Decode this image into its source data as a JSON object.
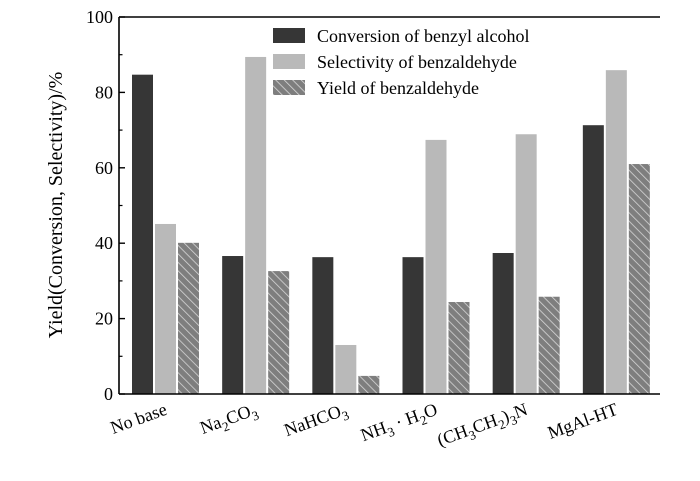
{
  "chart_data": {
    "type": "bar",
    "title": "",
    "xlabel": "",
    "ylabel": "Yield(Conversion, Selectivity)/%",
    "ylim": [
      0,
      100
    ],
    "yticks": [
      0,
      20,
      40,
      60,
      80,
      100
    ],
    "grid": false,
    "legend_position": "top-right",
    "categories": [
      {
        "base": "No base",
        "parts": [
          {
            "t": "No base"
          }
        ]
      },
      {
        "base": "Na2CO3",
        "parts": [
          {
            "t": "Na"
          },
          {
            "t": "2",
            "sub": true
          },
          {
            "t": "CO"
          },
          {
            "t": "3",
            "sub": true
          }
        ]
      },
      {
        "base": "NaHCO3",
        "parts": [
          {
            "t": "NaHCO"
          },
          {
            "t": "3",
            "sub": true
          }
        ]
      },
      {
        "base": "NH3 · H2O",
        "parts": [
          {
            "t": "NH"
          },
          {
            "t": "3",
            "sub": true
          },
          {
            "t": " · H"
          },
          {
            "t": "2",
            "sub": true
          },
          {
            "t": "O"
          }
        ]
      },
      {
        "base": "(CH3CH2)3N",
        "parts": [
          {
            "t": "(CH"
          },
          {
            "t": "3",
            "sub": true
          },
          {
            "t": "CH"
          },
          {
            "t": "2",
            "sub": true
          },
          {
            "t": ")"
          },
          {
            "t": "3",
            "sub": true
          },
          {
            "t": "N"
          }
        ]
      },
      {
        "base": "MgAl-HT",
        "parts": [
          {
            "t": "MgAl-HT"
          }
        ]
      }
    ],
    "series": [
      {
        "name": "Conversion of benzyl alcohol",
        "color": "#363636",
        "pattern": "solid",
        "values": [
          84.7,
          36.6,
          36.3,
          36.3,
          37.4,
          71.3
        ]
      },
      {
        "name": "Selectivity of benzaldehyde",
        "color": "#b9b9b9",
        "pattern": "solid",
        "values": [
          45.1,
          89.4,
          13.0,
          67.4,
          68.9,
          85.9
        ]
      },
      {
        "name": "Yield of benzaldehyde",
        "color": "#7e7e7e",
        "pattern": "hatch",
        "values": [
          40.1,
          32.6,
          4.8,
          24.4,
          25.8,
          61.0
        ]
      }
    ]
  }
}
